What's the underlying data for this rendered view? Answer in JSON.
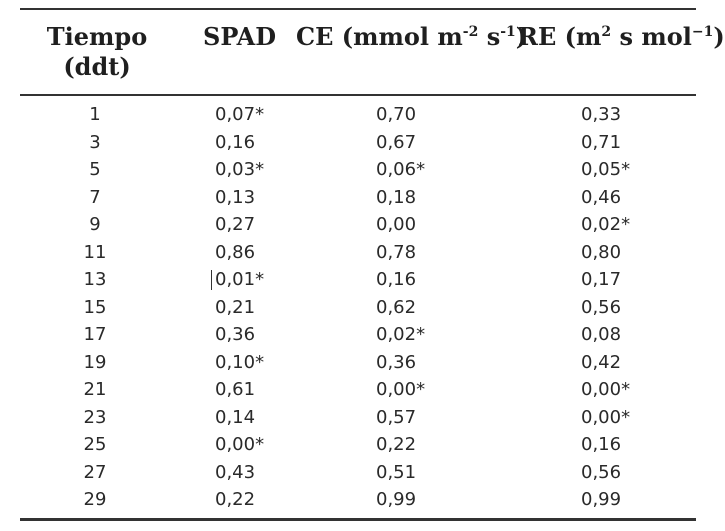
{
  "table": {
    "headers": {
      "tiempo_line1": "Tiempo",
      "tiempo_line2": "(ddt)",
      "spad": "SPAD",
      "ce_base": "CE (mmol m",
      "ce_exp1": "-2",
      "ce_mid": " s",
      "ce_exp2": "-1",
      "ce_end": ")",
      "re_base": "RE (m",
      "re_exp1": "2",
      "re_mid": " s mol",
      "re_exp2": "−1",
      "re_end": ")"
    },
    "rows": [
      {
        "t": "1",
        "spad": "0,07*",
        "ce": "0,70",
        "re": "0,33"
      },
      {
        "t": "3",
        "spad": "0,16",
        "ce": "0,67",
        "re": "0,71"
      },
      {
        "t": "5",
        "spad": "0,03*",
        "ce": "0,06*",
        "re": "0,05*"
      },
      {
        "t": "7",
        "spad": "0,13",
        "ce": "0,18",
        "re": "0,46"
      },
      {
        "t": "9",
        "spad": "0,27",
        "ce": "0,00",
        "re": "0,02*"
      },
      {
        "t": "11",
        "spad": "0,86",
        "ce": "0,78",
        "re": "0,80"
      },
      {
        "t": "13",
        "spad": "0,01*",
        "ce": "0,16",
        "re": "0,17"
      },
      {
        "t": "15",
        "spad": "0,21",
        "ce": "0,62",
        "re": "0,56"
      },
      {
        "t": "17",
        "spad": "0,36",
        "ce": "0,02*",
        "re": "0,08"
      },
      {
        "t": "19",
        "spad": "0,10*",
        "ce": "0,36",
        "re": "0,42"
      },
      {
        "t": "21",
        "spad": "0,61",
        "ce": "0,00*",
        "re": "0,00*"
      },
      {
        "t": "23",
        "spad": "0,14",
        "ce": "0,57",
        "re": "0,00*"
      },
      {
        "t": "25",
        "spad": "0,00*",
        "ce": "0,22",
        "re": "0,16"
      },
      {
        "t": "27",
        "spad": "0,43",
        "ce": "0,51",
        "re": "0,56"
      },
      {
        "t": "29",
        "spad": "0,22",
        "ce": "0,99",
        "re": "0,99"
      }
    ]
  }
}
